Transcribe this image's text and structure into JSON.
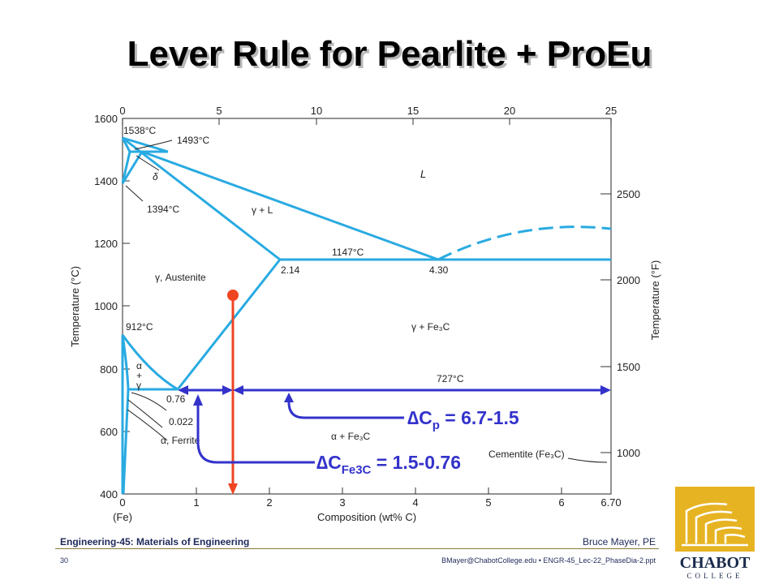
{
  "title": "Lever Rule for Pearlite + ProEu",
  "diagram": {
    "top_axis_ticks": [
      "0",
      "5",
      "10",
      "15",
      "20",
      "25"
    ],
    "left_axis_ticks": [
      "1600",
      "1400",
      "1200",
      "1000",
      "800",
      "600",
      "400"
    ],
    "right_axis_ticks": [
      "2500",
      "2000",
      "1500",
      "1000"
    ],
    "bottom_axis_ticks": [
      "0",
      "1",
      "2",
      "3",
      "4",
      "5",
      "6",
      "6.70"
    ],
    "fe_label": "(Fe)",
    "x_axis_label": "Composition (wt% C)",
    "y_left_label": "Temperature (°C)",
    "y_right_label": "Temperature (°F)",
    "labels": {
      "t1538": "1538°C",
      "t1493": "1493°C",
      "delta": "δ",
      "t1394": "1394°C",
      "liquid": "L",
      "gamma_l": "γ + L",
      "t1147": "1147°C",
      "c214": "2.14",
      "c430": "4.30",
      "austenite": "γ, Austenite",
      "t912": "912°C",
      "gamma_fe3c": "γ + Fe₃C",
      "alpha": "α",
      "plus": "+",
      "gamma": "γ",
      "t727": "727°C",
      "c076": "0.76",
      "c0022": "0.022",
      "ferrite": "α, Ferrite",
      "alpha_fe3c": "α + Fe₃C",
      "cementite": "Cementite (Fe₃C)"
    },
    "lever_delta_cp": "∆Cp = 6.7-1.5",
    "lever_delta_cfe3c": "∆CFe3C = 1.5-0.76"
  },
  "footer": {
    "course": "Engineering-45: Materials of Engineering",
    "author": "Bruce Mayer, PE",
    "slide_number": "30",
    "email": "BMayer@ChabotCollege.edu  • ENGR-45_Lec-22_PhaseDia-2.ppt"
  },
  "logo": {
    "name": "CHABOT",
    "sub": "COLLEGE",
    "color": "#e6b422"
  },
  "colors": {
    "phase_lines": "#29abe2",
    "lever_arrows": "#3333cc",
    "composition_line": "#ee4422"
  }
}
